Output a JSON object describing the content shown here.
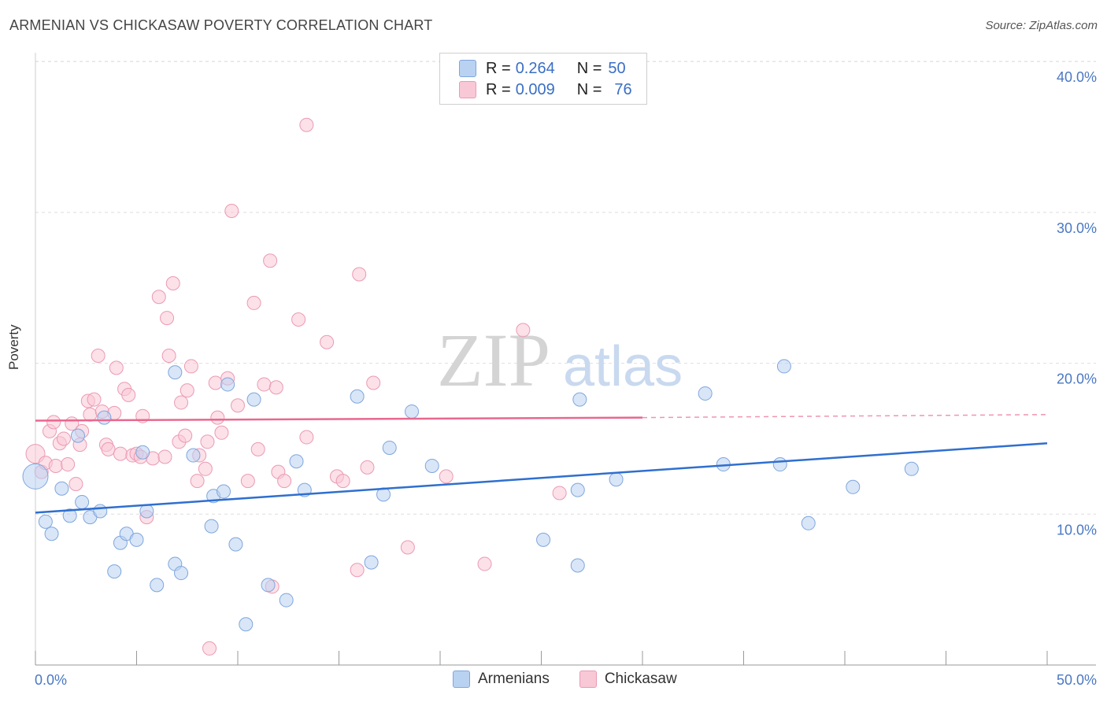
{
  "header": {
    "title": "ARMENIAN VS CHICKASAW POVERTY CORRELATION CHART",
    "source": "Source: ZipAtlas.com"
  },
  "watermark": {
    "zip": "ZIP",
    "atlas": "atlas"
  },
  "legend": {
    "armenians": {
      "r_label": "R = ",
      "r_value": "0.264",
      "n_label": "N = ",
      "n_value": "50"
    },
    "chickasaw": {
      "r_label": "R = ",
      "r_value": "0.009",
      "n_label": "N = ",
      "n_value": "76"
    }
  },
  "colors": {
    "armenians_fill": "#b9d2f2",
    "armenians_stroke": "#7fa6dc",
    "armenians_line": "#2f6fcf",
    "chickasaw_fill": "#f9c8d6",
    "chickasaw_stroke": "#eb9ab3",
    "chickasaw_line": "#e8688f",
    "tick_text": "#4a78c4"
  },
  "chart_data": {
    "type": "scatter",
    "title": "ARMENIAN VS CHICKASAW POVERTY CORRELATION CHART",
    "xlabel": "",
    "ylabel": "Poverty",
    "xlim": [
      0,
      50
    ],
    "ylim": [
      0,
      40
    ],
    "x_tick_labels": [
      "0.0%",
      "50.0%"
    ],
    "y_ticks": [
      10,
      20,
      30,
      40
    ],
    "y_tick_labels": [
      "10.0%",
      "20.0%",
      "30.0%",
      "40.0%"
    ],
    "grid": true,
    "series": [
      {
        "name": "Armenians",
        "trend": {
          "x0": 0,
          "y0": 10.1,
          "x1": 50,
          "y1": 14.7
        },
        "points": [
          [
            0.0,
            12.5
          ],
          [
            0.5,
            9.5
          ],
          [
            0.8,
            8.7
          ],
          [
            1.3,
            11.7
          ],
          [
            1.7,
            9.9
          ],
          [
            2.1,
            15.2
          ],
          [
            2.3,
            10.8
          ],
          [
            2.7,
            9.8
          ],
          [
            3.2,
            10.2
          ],
          [
            3.4,
            16.4
          ],
          [
            3.9,
            6.2
          ],
          [
            4.2,
            8.1
          ],
          [
            4.5,
            8.7
          ],
          [
            5.0,
            8.3
          ],
          [
            5.3,
            14.1
          ],
          [
            5.5,
            10.2
          ],
          [
            6.0,
            5.3
          ],
          [
            6.9,
            19.4
          ],
          [
            6.9,
            6.7
          ],
          [
            7.2,
            6.1
          ],
          [
            7.8,
            13.9
          ],
          [
            8.7,
            9.2
          ],
          [
            8.8,
            11.2
          ],
          [
            9.3,
            11.5
          ],
          [
            9.5,
            18.6
          ],
          [
            9.9,
            8.0
          ],
          [
            10.4,
            2.7
          ],
          [
            10.8,
            17.6
          ],
          [
            11.5,
            5.3
          ],
          [
            12.4,
            4.3
          ],
          [
            12.9,
            13.5
          ],
          [
            13.3,
            11.6
          ],
          [
            15.9,
            17.8
          ],
          [
            16.6,
            6.8
          ],
          [
            17.2,
            11.3
          ],
          [
            17.5,
            14.4
          ],
          [
            18.6,
            16.8
          ],
          [
            19.6,
            13.2
          ],
          [
            25.1,
            8.3
          ],
          [
            26.9,
            17.6
          ],
          [
            26.8,
            6.6
          ],
          [
            26.8,
            11.6
          ],
          [
            28.7,
            12.3
          ],
          [
            33.1,
            18.0
          ],
          [
            34.0,
            13.3
          ],
          [
            36.8,
            13.3
          ],
          [
            37.0,
            19.8
          ],
          [
            38.2,
            9.4
          ],
          [
            40.4,
            11.8
          ],
          [
            43.3,
            13.0
          ]
        ]
      },
      {
        "name": "Chickasaw",
        "trend": {
          "x0": 0,
          "y0": 16.2,
          "x1": 30,
          "y1": 16.4,
          "dash_x1": 50,
          "dash_y1": 16.6
        },
        "points": [
          [
            0.0,
            14.0
          ],
          [
            0.3,
            12.8
          ],
          [
            0.5,
            13.4
          ],
          [
            0.7,
            15.5
          ],
          [
            0.9,
            16.1
          ],
          [
            1.0,
            13.2
          ],
          [
            1.2,
            14.7
          ],
          [
            1.4,
            15.0
          ],
          [
            1.6,
            13.3
          ],
          [
            1.8,
            16.0
          ],
          [
            2.0,
            12.0
          ],
          [
            2.2,
            14.6
          ],
          [
            2.3,
            15.5
          ],
          [
            2.6,
            17.5
          ],
          [
            2.7,
            16.6
          ],
          [
            2.9,
            17.6
          ],
          [
            3.1,
            20.5
          ],
          [
            3.3,
            16.8
          ],
          [
            3.5,
            14.6
          ],
          [
            3.6,
            14.3
          ],
          [
            3.9,
            16.7
          ],
          [
            4.0,
            19.7
          ],
          [
            4.2,
            14.0
          ],
          [
            4.4,
            18.3
          ],
          [
            4.6,
            17.9
          ],
          [
            4.8,
            13.9
          ],
          [
            5.0,
            14.0
          ],
          [
            5.2,
            13.8
          ],
          [
            5.3,
            16.5
          ],
          [
            5.5,
            9.8
          ],
          [
            5.8,
            13.7
          ],
          [
            6.1,
            24.4
          ],
          [
            6.4,
            13.8
          ],
          [
            6.5,
            23.0
          ],
          [
            6.6,
            20.5
          ],
          [
            6.8,
            25.3
          ],
          [
            7.1,
            14.8
          ],
          [
            7.2,
            17.4
          ],
          [
            7.4,
            15.2
          ],
          [
            7.5,
            18.2
          ],
          [
            7.7,
            19.8
          ],
          [
            8.0,
            12.2
          ],
          [
            8.1,
            13.9
          ],
          [
            8.4,
            13.0
          ],
          [
            8.5,
            14.8
          ],
          [
            8.6,
            1.1
          ],
          [
            8.9,
            18.7
          ],
          [
            9.0,
            16.4
          ],
          [
            9.2,
            15.4
          ],
          [
            9.5,
            19.0
          ],
          [
            9.7,
            30.1
          ],
          [
            10.0,
            17.2
          ],
          [
            10.5,
            12.2
          ],
          [
            10.8,
            24.0
          ],
          [
            11.0,
            14.3
          ],
          [
            11.3,
            18.6
          ],
          [
            11.6,
            26.8
          ],
          [
            11.7,
            5.2
          ],
          [
            11.9,
            18.4
          ],
          [
            12.0,
            12.8
          ],
          [
            12.3,
            12.2
          ],
          [
            13.0,
            22.9
          ],
          [
            13.4,
            35.8
          ],
          [
            13.4,
            15.1
          ],
          [
            14.4,
            21.4
          ],
          [
            14.9,
            12.5
          ],
          [
            15.2,
            12.2
          ],
          [
            15.9,
            6.3
          ],
          [
            16.0,
            25.9
          ],
          [
            16.4,
            13.1
          ],
          [
            16.7,
            18.7
          ],
          [
            18.4,
            7.8
          ],
          [
            20.3,
            12.5
          ],
          [
            22.2,
            6.7
          ],
          [
            24.1,
            22.2
          ],
          [
            25.9,
            11.4
          ]
        ]
      }
    ]
  }
}
